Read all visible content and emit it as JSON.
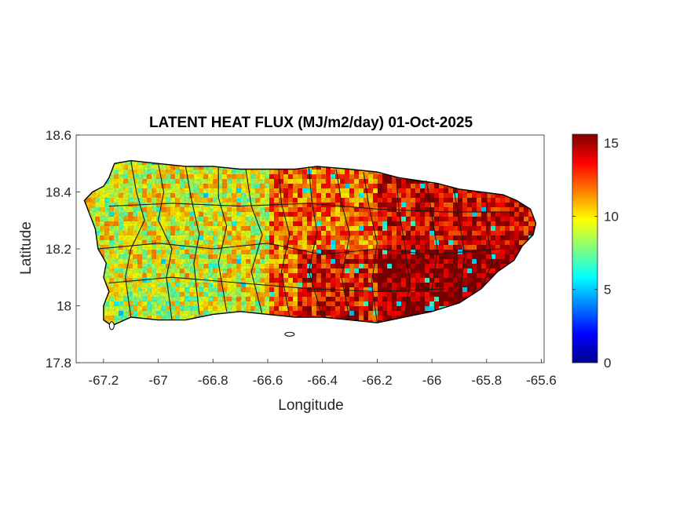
{
  "chart_data": {
    "type": "heatmap",
    "title": "LATENT HEAT FLUX (MJ/m2/day) 01-Oct-2025",
    "xlabel": "Longitude",
    "ylabel": "Latitude",
    "xlim": [
      -67.3,
      -65.59
    ],
    "ylim": [
      17.8,
      18.6
    ],
    "xticks": [
      -67.2,
      -67,
      -66.8,
      -66.6,
      -66.4,
      -66.2,
      -66,
      -65.8,
      -65.6
    ],
    "yticks": [
      17.8,
      18,
      18.2,
      18.4,
      18.6
    ],
    "xtick_labels": [
      "-67.2",
      "-67",
      "-66.8",
      "-66.6",
      "-66.4",
      "-66.2",
      "-66",
      "-65.8",
      "-65.6"
    ],
    "ytick_labels": [
      "17.8",
      "18",
      "18.2",
      "18.4",
      "18.6"
    ],
    "grid": false,
    "colormap": "jet",
    "colorbar": {
      "limits": [
        0,
        15.6
      ],
      "ticks": [
        0,
        5,
        10,
        15
      ],
      "tick_labels": [
        "0",
        "5",
        "10",
        "15"
      ],
      "placement": "right"
    },
    "region": "Puerto Rico",
    "value_regions": [
      {
        "lon_range": [
          -67.27,
          -66.6
        ],
        "lat_range": [
          17.93,
          18.52
        ],
        "approx_value": 9.5
      },
      {
        "lon_range": [
          -66.6,
          -66.2
        ],
        "lat_range": [
          17.93,
          18.5
        ],
        "approx_value": 12
      },
      {
        "lon_range": [
          -66.2,
          -65.6
        ],
        "lat_range": [
          17.95,
          18.48
        ],
        "approx_value": 14
      }
    ]
  }
}
